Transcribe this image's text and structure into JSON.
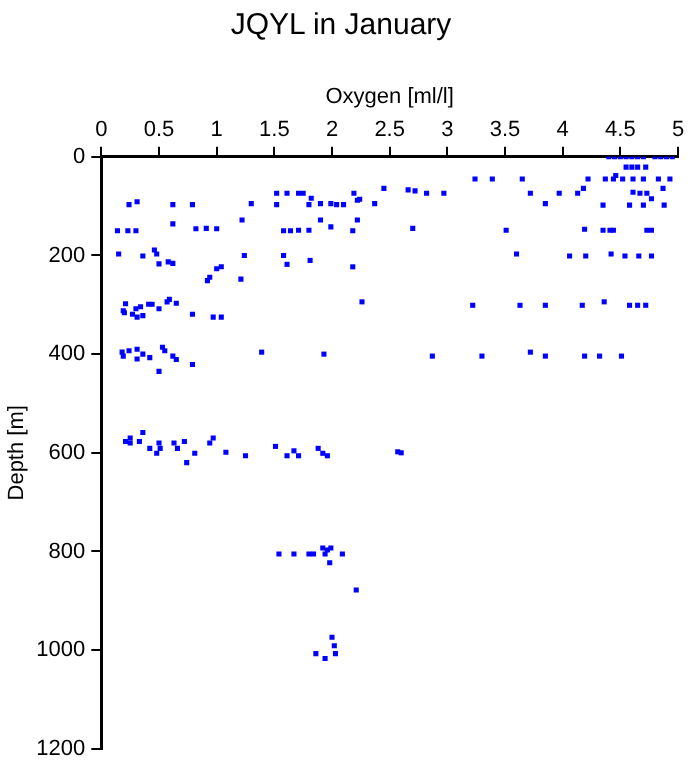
{
  "chart_data": {
    "type": "scatter",
    "title": "JQYL in January",
    "xlabel": "Oxygen [ml/l]",
    "ylabel": "Depth [m]",
    "xlim": [
      0,
      5
    ],
    "xticks": [
      0,
      0.5,
      1,
      1.5,
      2,
      2.5,
      3,
      3.5,
      4,
      4.5,
      5
    ],
    "ylim": [
      1200,
      0
    ],
    "yticks": [
      0,
      200,
      400,
      600,
      800,
      1000,
      1200
    ],
    "marker": "square",
    "grid": false,
    "legend": false,
    "series": [
      {
        "color": "#0000ff",
        "x": [
          1.52,
          1.61,
          1.71,
          1.75,
          2.19,
          0.24,
          0.31,
          0.62,
          0.79,
          1.3,
          1.52,
          1.8,
          1.82,
          1.9,
          1.99,
          2.04,
          2.1,
          2.24,
          2.37,
          0.62,
          1.22,
          1.9,
          1.99,
          2.22,
          0.14,
          0.23,
          0.3,
          0.82,
          0.91,
          1.0,
          1.58,
          1.64,
          1.71,
          1.8,
          2.18,
          0.15,
          0.36,
          0.46,
          0.48,
          0.5,
          0.58,
          0.62,
          0.94,
          0.92,
          1.0,
          1.04,
          1.24,
          1.21,
          1.58,
          1.61,
          1.81,
          2.18,
          0.21,
          0.19,
          0.2,
          0.27,
          0.3,
          0.34,
          0.31,
          0.36,
          0.41,
          0.44,
          0.5,
          0.57,
          0.59,
          0.65,
          0.79,
          0.97,
          1.04,
          2.26,
          0.18,
          0.19,
          0.24,
          0.31,
          0.36,
          0.31,
          0.42,
          0.5,
          0.53,
          0.55,
          0.62,
          0.65,
          0.79,
          1.39,
          1.93,
          0.21,
          0.25,
          0.25,
          0.33,
          0.36,
          0.42,
          0.48,
          0.5,
          0.51,
          0.63,
          0.66,
          0.72,
          0.74,
          0.81,
          0.94,
          0.97,
          1.08,
          1.25,
          1.51,
          1.61,
          1.67,
          1.71,
          1.88,
          1.92,
          1.96,
          2.57,
          2.6,
          1.54,
          1.67,
          1.8,
          1.84,
          1.92,
          1.96,
          1.94,
          1.99,
          1.98,
          2.09,
          2.21,
          1.86,
          1.94,
          2.03,
          2.0,
          2.02,
          4.4,
          4.45,
          4.5,
          4.55,
          4.6,
          4.65,
          4.7,
          4.8,
          4.85,
          4.9,
          4.95,
          4.55,
          4.6,
          4.65,
          4.72,
          3.24,
          3.39,
          3.65,
          4.22,
          4.37,
          4.44,
          4.46,
          4.52,
          4.61,
          4.7,
          4.83,
          4.93,
          2.45,
          2.66,
          2.72,
          2.82,
          2.97,
          3.72,
          3.97,
          4.13,
          4.18,
          4.61,
          4.67,
          4.73,
          4.87,
          2.22,
          3.85,
          4.35,
          4.58,
          4.7,
          4.77,
          4.88,
          2.7,
          3.51,
          4.19,
          4.35,
          4.41,
          4.44,
          4.73,
          4.77,
          3.6,
          4.06,
          4.2,
          4.42,
          4.54,
          4.66,
          4.77,
          3.22,
          3.63,
          3.85,
          4.17,
          4.36,
          4.58,
          4.65,
          4.72,
          2.87,
          3.3,
          3.72,
          3.85,
          4.19,
          4.32,
          4.51
        ],
        "values": [
          74,
          74,
          74,
          74,
          74,
          97,
          91,
          97,
          97,
          95,
          97,
          97,
          84,
          95,
          95,
          97,
          97,
          86,
          95,
          136,
          128,
          128,
          142,
          128,
          150,
          150,
          150,
          146,
          145,
          146,
          150,
          150,
          149,
          149,
          150,
          197,
          201,
          189,
          197,
          217,
          213,
          216,
          244,
          251,
          227,
          223,
          200,
          248,
          200,
          218,
          210,
          223,
          298,
          312,
          316,
          319,
          308,
          304,
          325,
          322,
          299,
          299,
          308,
          294,
          289,
          297,
          319,
          325,
          325,
          294,
          396,
          404,
          393,
          390,
          400,
          410,
          407,
          435,
          386,
          393,
          404,
          411,
          421,
          396,
          400,
          577,
          570,
          580,
          577,
          559,
          591,
          601,
          580,
          591,
          580,
          591,
          577,
          620,
          601,
          580,
          570,
          599,
          606,
          587,
          606,
          596,
          606,
          591,
          601,
          606,
          598,
          600,
          805,
          805,
          805,
          805,
          793,
          797,
          805,
          793,
          823,
          805,
          878,
          1007,
          1017,
          1007,
          974,
          991,
          0,
          0,
          0,
          0,
          0,
          0,
          0,
          0,
          0,
          0,
          0,
          21,
          21,
          21,
          21,
          45,
          45,
          45,
          45,
          45,
          45,
          38,
          45,
          45,
          45,
          45,
          45,
          64,
          67,
          69,
          74,
          74,
          74,
          74,
          74,
          64,
          72,
          74,
          74,
          64,
          88,
          95,
          98,
          98,
          98,
          85,
          98,
          145,
          149,
          147,
          149,
          149,
          149,
          149,
          149,
          197,
          201,
          201,
          197,
          201,
          201,
          201,
          301,
          301,
          301,
          301,
          294,
          301,
          301,
          301,
          404,
          404,
          396,
          404,
          404,
          404,
          404
        ]
      }
    ]
  }
}
